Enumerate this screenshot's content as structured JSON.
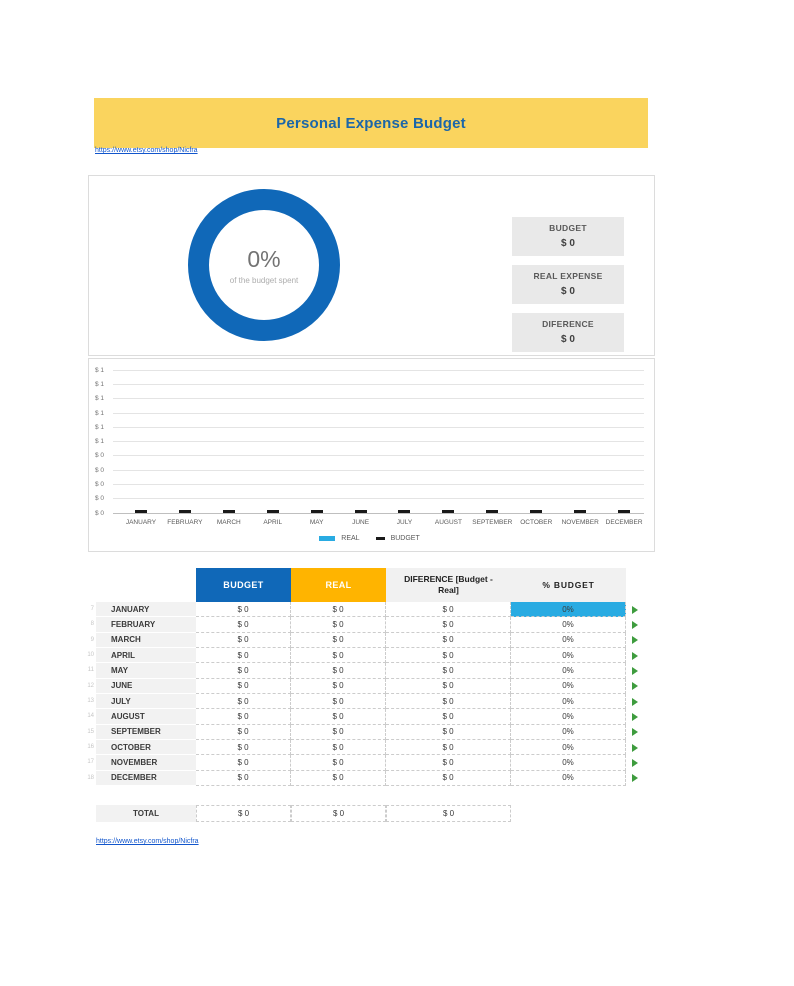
{
  "header": {
    "title": "Personal Expense Budget",
    "link": "https://www.etsy.com/shop/Nicfra"
  },
  "footer": {
    "link": "https://www.etsy.com/shop/Nicfra"
  },
  "summary": {
    "donut_percent": "0%",
    "donut_caption": "of the budget spent",
    "cards": [
      {
        "label": "BUDGET",
        "value": "$ 0"
      },
      {
        "label": "REAL EXPENSE",
        "value": "$ 0"
      },
      {
        "label": "DIFERENCE",
        "value": "$ 0"
      }
    ]
  },
  "chart_data": {
    "type": "bar",
    "title": "",
    "categories": [
      "JANUARY",
      "FEBRUARY",
      "MARCH",
      "APRIL",
      "MAY",
      "JUNE",
      "JULY",
      "AUGUST",
      "SEPTEMBER",
      "OCTOBER",
      "NOVEMBER",
      "DECEMBER"
    ],
    "series": [
      {
        "name": "REAL",
        "color": "#29ABE2",
        "values": [
          0,
          0,
          0,
          0,
          0,
          0,
          0,
          0,
          0,
          0,
          0,
          0
        ]
      },
      {
        "name": "BUDGET",
        "color": "#000000",
        "values": [
          0,
          0,
          0,
          0,
          0,
          0,
          0,
          0,
          0,
          0,
          0,
          0
        ]
      }
    ],
    "ylim": [
      0,
      1
    ],
    "y_tick_labels": [
      "$ 1",
      "$ 1",
      "$ 1",
      "$ 1",
      "$ 1",
      "$ 1",
      "$ 0",
      "$ 0",
      "$ 0",
      "$ 0",
      "$ 0"
    ],
    "grid": true,
    "legend_position": "bottom"
  },
  "table": {
    "columns": [
      "BUDGET",
      "REAL",
      "DIFERENCE [Budget - Real]",
      "% BUDGET"
    ],
    "rows": [
      {
        "num": "7",
        "month": "JANUARY",
        "budget": "$ 0",
        "real": "$ 0",
        "diff": "$ 0",
        "pct": "0%",
        "pct_highlight": true
      },
      {
        "num": "8",
        "month": "FEBRUARY",
        "budget": "$ 0",
        "real": "$ 0",
        "diff": "$ 0",
        "pct": "0%",
        "pct_highlight": false
      },
      {
        "num": "9",
        "month": "MARCH",
        "budget": "$ 0",
        "real": "$ 0",
        "diff": "$ 0",
        "pct": "0%",
        "pct_highlight": false
      },
      {
        "num": "10",
        "month": "APRIL",
        "budget": "$ 0",
        "real": "$ 0",
        "diff": "$ 0",
        "pct": "0%",
        "pct_highlight": false
      },
      {
        "num": "11",
        "month": "MAY",
        "budget": "$ 0",
        "real": "$ 0",
        "diff": "$ 0",
        "pct": "0%",
        "pct_highlight": false
      },
      {
        "num": "12",
        "month": "JUNE",
        "budget": "$ 0",
        "real": "$ 0",
        "diff": "$ 0",
        "pct": "0%",
        "pct_highlight": false
      },
      {
        "num": "13",
        "month": "JULY",
        "budget": "$ 0",
        "real": "$ 0",
        "diff": "$ 0",
        "pct": "0%",
        "pct_highlight": false
      },
      {
        "num": "14",
        "month": "AUGUST",
        "budget": "$ 0",
        "real": "$ 0",
        "diff": "$ 0",
        "pct": "0%",
        "pct_highlight": false
      },
      {
        "num": "15",
        "month": "SEPTEMBER",
        "budget": "$ 0",
        "real": "$ 0",
        "diff": "$ 0",
        "pct": "0%",
        "pct_highlight": false
      },
      {
        "num": "16",
        "month": "OCTOBER",
        "budget": "$ 0",
        "real": "$ 0",
        "diff": "$ 0",
        "pct": "0%",
        "pct_highlight": false
      },
      {
        "num": "17",
        "month": "NOVEMBER",
        "budget": "$ 0",
        "real": "$ 0",
        "diff": "$ 0",
        "pct": "0%",
        "pct_highlight": false
      },
      {
        "num": "18",
        "month": "DECEMBER",
        "budget": "$ 0",
        "real": "$ 0",
        "diff": "$ 0",
        "pct": "0%",
        "pct_highlight": false
      }
    ],
    "total_label": "TOTAL",
    "total": {
      "budget": "$ 0",
      "real": "$ 0",
      "diff": "$ 0"
    }
  },
  "colors": {
    "banner_yellow": "#FAD45E",
    "title_blue": "#1B66A9",
    "accent_blue": "#1068B8",
    "accent_yellow": "#FFB400",
    "highlight_cyan": "#29ABE2",
    "card_bg": "#E9E9E9",
    "row_label_bg": "#F2F2F2",
    "marker_green": "#3E9C3E",
    "link_blue": "#1155CC"
  }
}
